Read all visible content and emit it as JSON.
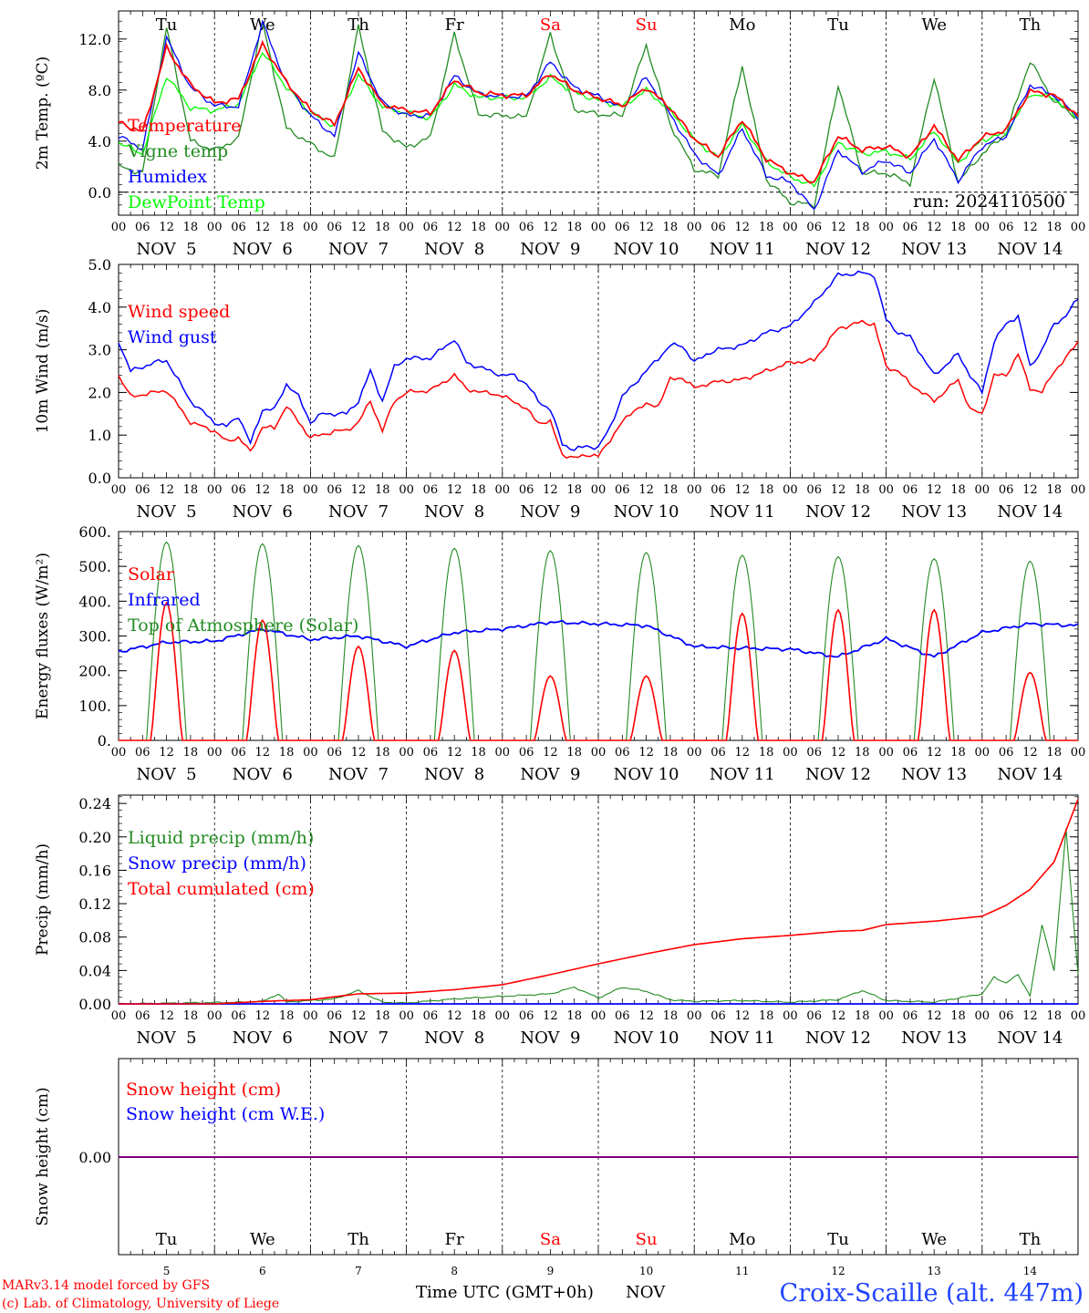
{
  "colors": {
    "red": "#ff0000",
    "green": "#228b22",
    "blue": "#0000ff",
    "lightgreen": "#00ff00",
    "purple": "#800080",
    "black": "#000000"
  },
  "days": [
    "Tu",
    "We",
    "Th",
    "Fr",
    "Sa",
    "Su",
    "Mo",
    "Tu",
    "We",
    "Th"
  ],
  "weekend_days": [
    "Sa",
    "Su"
  ],
  "dates": [
    "NOV  5",
    "NOV  6",
    "NOV  7",
    "NOV  8",
    "NOV  9",
    "NOV 10",
    "NOV 11",
    "NOV 12",
    "NOV 13",
    "NOV 14"
  ],
  "day_numbers": [
    "5",
    "6",
    "7",
    "8",
    "9",
    "10",
    "11",
    "12",
    "13",
    "14"
  ],
  "hour_labels": [
    "00",
    "06",
    "12",
    "18"
  ],
  "hour_end_label": "00",
  "run_label": "run: 2024110500",
  "footer": {
    "model": "MARv3.14 model forced by GFS",
    "lab": "(c) Lab. of Climatology, University of Liege",
    "xlabel": "Time UTC (GMT+0h)",
    "month": "NOV",
    "station": "Croix-Scaille (alt. 447m)"
  },
  "chart_data": [
    {
      "type": "line",
      "ylabel": "2m Temp. (ºC)",
      "ylim": [
        -1.8,
        14.2
      ],
      "yticks": [
        "0.0",
        "4.0",
        "8.0",
        "12.0"
      ],
      "zero_line": true,
      "x_unit": "hours since NOV 5 00 UTC",
      "series": [
        {
          "name": "Temperature",
          "color": "red",
          "x": [
            0,
            6,
            12,
            18,
            24,
            30,
            36,
            42,
            48,
            54,
            60,
            66,
            72,
            78,
            84,
            90,
            96,
            102,
            108,
            114,
            120,
            126,
            132,
            138,
            144,
            150,
            156,
            162,
            168,
            174,
            180,
            186,
            192,
            198,
            204,
            210,
            216,
            222,
            228,
            234,
            240
          ],
          "y": [
            5.5,
            4.7,
            11.3,
            8.4,
            7.0,
            7.3,
            11.6,
            8.6,
            6.4,
            5.3,
            9.7,
            6.9,
            6.4,
            6.2,
            8.8,
            7.8,
            7.6,
            7.6,
            9.3,
            8.0,
            7.4,
            6.8,
            8.2,
            6.6,
            4.2,
            2.8,
            5.7,
            2.6,
            1.5,
            0.8,
            4.4,
            3.3,
            3.6,
            2.8,
            5.2,
            2.5,
            4.3,
            4.9,
            7.9,
            7.6,
            6.0
          ]
        },
        {
          "name": "Vigne temp",
          "color": "green",
          "x": [
            0,
            6,
            12,
            18,
            24,
            30,
            36,
            42,
            48,
            54,
            60,
            66,
            72,
            78,
            84,
            90,
            96,
            102,
            108,
            114,
            120,
            126,
            132,
            138,
            144,
            150,
            156,
            162,
            168,
            174,
            180,
            186,
            192,
            198,
            204,
            210,
            216,
            222,
            228,
            234,
            240
          ],
          "y": [
            2.0,
            1.5,
            12.9,
            4.0,
            3.3,
            4.2,
            13.3,
            5.0,
            3.8,
            2.6,
            13.0,
            4.8,
            3.5,
            4.3,
            12.4,
            6.1,
            6.0,
            5.9,
            12.4,
            6.5,
            6.1,
            6.0,
            11.5,
            5.3,
            1.8,
            1.3,
            9.9,
            1.0,
            -0.8,
            -1.0,
            8.4,
            1.5,
            1.5,
            0.7,
            9.0,
            0.8,
            3.0,
            4.6,
            10.3,
            7.1,
            5.8
          ]
        },
        {
          "name": "Humidex",
          "color": "blue",
          "x": [
            0,
            6,
            12,
            18,
            24,
            30,
            36,
            42,
            48,
            54,
            60,
            66,
            72,
            78,
            84,
            90,
            96,
            102,
            108,
            114,
            120,
            126,
            132,
            138,
            144,
            150,
            156,
            162,
            168,
            174,
            180,
            186,
            192,
            198,
            204,
            210,
            216,
            222,
            228,
            234,
            240
          ],
          "y": [
            4.4,
            3.4,
            12.1,
            8.2,
            6.8,
            6.7,
            13.3,
            8.5,
            6.0,
            4.4,
            10.9,
            7.0,
            6.0,
            6.0,
            9.1,
            7.7,
            7.5,
            7.5,
            10.2,
            8.2,
            7.5,
            6.6,
            9.0,
            6.1,
            3.0,
            1.3,
            5.0,
            1.3,
            0.8,
            -1.4,
            3.3,
            1.6,
            2.5,
            1.5,
            4.2,
            0.9,
            3.6,
            4.4,
            8.4,
            7.6,
            5.9
          ]
        },
        {
          "name": "DewPoint Temp",
          "color": "lightgreen",
          "x": [
            0,
            6,
            12,
            18,
            24,
            30,
            36,
            42,
            48,
            54,
            60,
            66,
            72,
            78,
            84,
            90,
            96,
            102,
            108,
            114,
            120,
            126,
            132,
            138,
            144,
            150,
            156,
            162,
            168,
            174,
            180,
            186,
            192,
            198,
            204,
            210,
            216,
            222,
            228,
            234,
            240
          ],
          "y": [
            3.9,
            3.0,
            9.1,
            6.6,
            6.4,
            6.9,
            11.0,
            8.2,
            6.2,
            5.2,
            9.2,
            6.7,
            6.2,
            5.8,
            8.4,
            7.4,
            7.4,
            7.4,
            9.0,
            7.8,
            7.2,
            6.7,
            8.0,
            6.4,
            4.1,
            2.7,
            5.3,
            2.4,
            1.2,
            0.5,
            3.9,
            3.0,
            3.2,
            2.6,
            4.8,
            2.3,
            4.1,
            4.6,
            7.7,
            7.4,
            5.8
          ]
        }
      ]
    },
    {
      "type": "line",
      "ylabel": "10m Wind (m/s)",
      "ylim": [
        0,
        5.0
      ],
      "yticks": [
        "0.0",
        "1.0",
        "2.0",
        "3.0",
        "4.0",
        "5.0"
      ],
      "x_unit": "hours since NOV 5 00 UTC",
      "series": [
        {
          "name": "Wind speed",
          "color": "red",
          "x": [
            0,
            3,
            9,
            12,
            18,
            24,
            27,
            30,
            33,
            36,
            39,
            42,
            45,
            48,
            51,
            54,
            57,
            60,
            63,
            66,
            69,
            72,
            78,
            84,
            87,
            90,
            93,
            96,
            99,
            102,
            105,
            108,
            111,
            114,
            117,
            120,
            123,
            126,
            129,
            132,
            135,
            138,
            141,
            144,
            147,
            150,
            156,
            162,
            168,
            174,
            180,
            186,
            189,
            192,
            195,
            198,
            204,
            210,
            213,
            216,
            219,
            222,
            225,
            228,
            231,
            234,
            237,
            240
          ],
          "y": [
            2.4,
            1.9,
            2.0,
            2.05,
            1.3,
            1.1,
            0.85,
            0.95,
            0.6,
            1.2,
            1.15,
            1.7,
            1.3,
            0.95,
            1.0,
            1.1,
            1.1,
            1.3,
            1.8,
            1.1,
            1.8,
            2.0,
            2.05,
            2.4,
            2.1,
            2.0,
            2.0,
            1.9,
            1.8,
            1.6,
            1.3,
            1.3,
            0.55,
            0.45,
            0.55,
            0.5,
            0.9,
            1.3,
            1.6,
            1.7,
            1.7,
            2.3,
            2.35,
            2.1,
            2.2,
            2.25,
            2.3,
            2.5,
            2.7,
            2.75,
            3.5,
            3.65,
            3.6,
            2.6,
            2.5,
            2.2,
            1.8,
            2.3,
            1.6,
            1.5,
            2.4,
            2.4,
            2.9,
            2.1,
            2.0,
            2.5,
            2.8,
            3.2
          ]
        },
        {
          "name": "Wind gust",
          "color": "blue",
          "x": [
            0,
            3,
            9,
            12,
            18,
            24,
            27,
            30,
            33,
            36,
            39,
            42,
            45,
            48,
            51,
            54,
            57,
            60,
            63,
            66,
            69,
            72,
            78,
            84,
            87,
            90,
            93,
            96,
            99,
            102,
            105,
            108,
            111,
            114,
            117,
            120,
            123,
            126,
            129,
            132,
            135,
            138,
            141,
            144,
            147,
            150,
            156,
            162,
            168,
            174,
            180,
            186,
            189,
            192,
            195,
            198,
            204,
            210,
            213,
            216,
            219,
            222,
            225,
            228,
            231,
            234,
            237,
            240
          ],
          "y": [
            3.2,
            2.5,
            2.7,
            2.75,
            1.8,
            1.3,
            1.2,
            1.45,
            0.8,
            1.6,
            1.6,
            2.2,
            1.9,
            1.3,
            1.5,
            1.5,
            1.5,
            1.8,
            2.5,
            1.8,
            2.6,
            2.8,
            2.8,
            3.25,
            2.7,
            2.6,
            2.5,
            2.4,
            2.4,
            2.2,
            1.8,
            1.6,
            0.8,
            0.65,
            0.75,
            0.7,
            1.2,
            1.9,
            2.2,
            2.5,
            2.8,
            3.1,
            3.1,
            2.7,
            2.9,
            3.0,
            3.1,
            3.4,
            3.55,
            4.1,
            4.75,
            4.8,
            4.75,
            3.7,
            3.4,
            3.3,
            2.4,
            2.9,
            2.4,
            2.0,
            3.2,
            3.6,
            3.8,
            2.6,
            3.0,
            3.6,
            3.8,
            4.2
          ]
        }
      ]
    },
    {
      "type": "line",
      "ylabel": "Energy fluxes (W/m²)",
      "ylim": [
        0,
        600
      ],
      "yticks": [
        "0.",
        "100.",
        "200.",
        "300.",
        "400.",
        "500.",
        "600."
      ],
      "x_unit": "hours since NOV 5 00 UTC",
      "peaks": [
        {
          "toa": 570,
          "solar": 395,
          "infrared_at_peak": 285
        },
        {
          "toa": 565,
          "solar": 345,
          "infrared_at_peak": 335
        },
        {
          "toa": 560,
          "solar": 270,
          "infrared_at_peak": 320
        },
        {
          "toa": 552,
          "solar": 258,
          "infrared_at_peak": 313
        },
        {
          "toa": 545,
          "solar": 185,
          "infrared_at_peak": 340
        },
        {
          "toa": 540,
          "solar": 185,
          "infrared_at_peak": 330
        },
        {
          "toa": 532,
          "solar": 365,
          "infrared_at_peak": 270
        },
        {
          "toa": 528,
          "solar": 375,
          "infrared_at_peak": 245
        },
        {
          "toa": 522,
          "solar": 375,
          "infrared_at_peak": 245
        },
        {
          "toa": 515,
          "solar": 195,
          "infrared_at_peak": 330
        }
      ],
      "series": [
        {
          "name": "Solar",
          "color": "red"
        },
        {
          "name": "Infrared",
          "color": "blue",
          "x": [
            0,
            12,
            24,
            36,
            48,
            60,
            72,
            84,
            96,
            108,
            120,
            132,
            144,
            156,
            168,
            180,
            192,
            204,
            216,
            228,
            240
          ],
          "y": [
            255,
            282,
            285,
            320,
            290,
            300,
            270,
            310,
            320,
            340,
            335,
            330,
            270,
            265,
            262,
            240,
            292,
            240,
            310,
            335,
            330
          ]
        },
        {
          "name": "Top of Atmosphere (Solar)",
          "color": "green"
        }
      ]
    },
    {
      "type": "line",
      "ylabel": "Precip (mm/h)",
      "ylim": [
        0,
        0.25
      ],
      "yticks": [
        "0.00",
        "0.04",
        "0.08",
        "0.12",
        "0.16",
        "0.20",
        "0.24"
      ],
      "x_unit": "hours since NOV 5 00 UTC",
      "series": [
        {
          "name": "Liquid precip (mm/h)",
          "color": "green",
          "x": [
            0,
            30,
            36,
            40,
            42,
            48,
            54,
            60,
            66,
            72,
            84,
            96,
            108,
            114,
            120,
            126,
            132,
            138,
            144,
            156,
            168,
            180,
            186,
            192,
            204,
            216,
            219,
            222,
            225,
            228,
            231,
            234,
            237,
            240
          ],
          "y": [
            0,
            0.002,
            0.003,
            0.012,
            0.002,
            0.004,
            0.006,
            0.016,
            0.002,
            0.001,
            0.006,
            0.009,
            0.012,
            0.02,
            0.007,
            0.02,
            0.015,
            0.005,
            0.003,
            0.004,
            0.002,
            0.005,
            0.016,
            0.004,
            0.002,
            0.012,
            0.032,
            0.025,
            0.035,
            0.01,
            0.095,
            0.04,
            0.21,
            0.035
          ]
        },
        {
          "name": "Snow precip (mm/h)",
          "color": "blue",
          "x": [
            0,
            240
          ],
          "y": [
            0,
            0
          ]
        },
        {
          "name": "Total cumulated (cm)",
          "color": "red",
          "x": [
            0,
            24,
            36,
            48,
            60,
            72,
            84,
            96,
            108,
            120,
            132,
            144,
            156,
            168,
            180,
            186,
            192,
            204,
            216,
            222,
            228,
            234,
            240
          ],
          "y": [
            0,
            0,
            0.003,
            0.005,
            0.012,
            0.013,
            0.017,
            0.023,
            0.035,
            0.048,
            0.06,
            0.071,
            0.078,
            0.082,
            0.087,
            0.088,
            0.095,
            0.099,
            0.105,
            0.118,
            0.137,
            0.17,
            0.245
          ]
        }
      ]
    },
    {
      "type": "line",
      "ylabel": "Snow height (cm)",
      "yticks": [
        "0.00"
      ],
      "series": [
        {
          "name": "Snow height (cm)",
          "color": "red",
          "x": [
            0,
            240
          ],
          "y": [
            0,
            0
          ]
        },
        {
          "name": "Snow height (cm W.E.)",
          "color": "blue",
          "x": [
            0,
            240
          ],
          "y": [
            0,
            0
          ]
        }
      ]
    }
  ]
}
